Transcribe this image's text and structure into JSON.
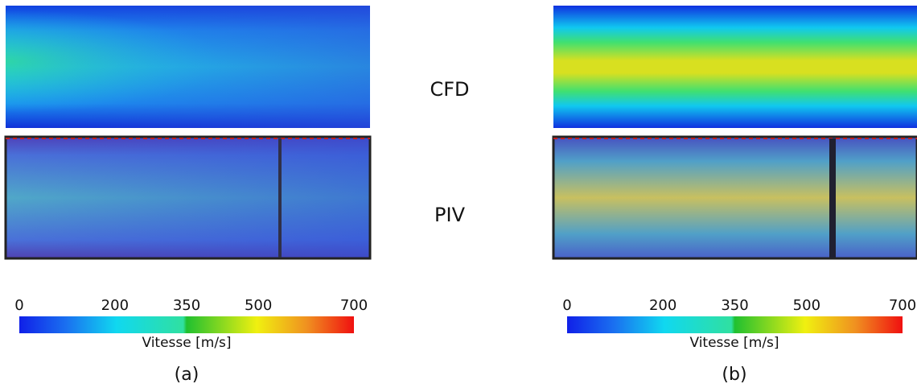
{
  "row_labels": [
    "CFD",
    "PIV"
  ],
  "panels": [
    {
      "label": "(a)",
      "colorbar": {
        "label": "Vitesse [m/s]",
        "range": [
          0,
          700
        ],
        "ticks": [
          0,
          200,
          350,
          500,
          700
        ]
      }
    },
    {
      "label": "(b)",
      "colorbar": {
        "label": "Vitesse [m/s]",
        "range": [
          0,
          700
        ],
        "ticks": [
          0,
          200,
          350,
          500,
          700
        ]
      }
    }
  ]
}
